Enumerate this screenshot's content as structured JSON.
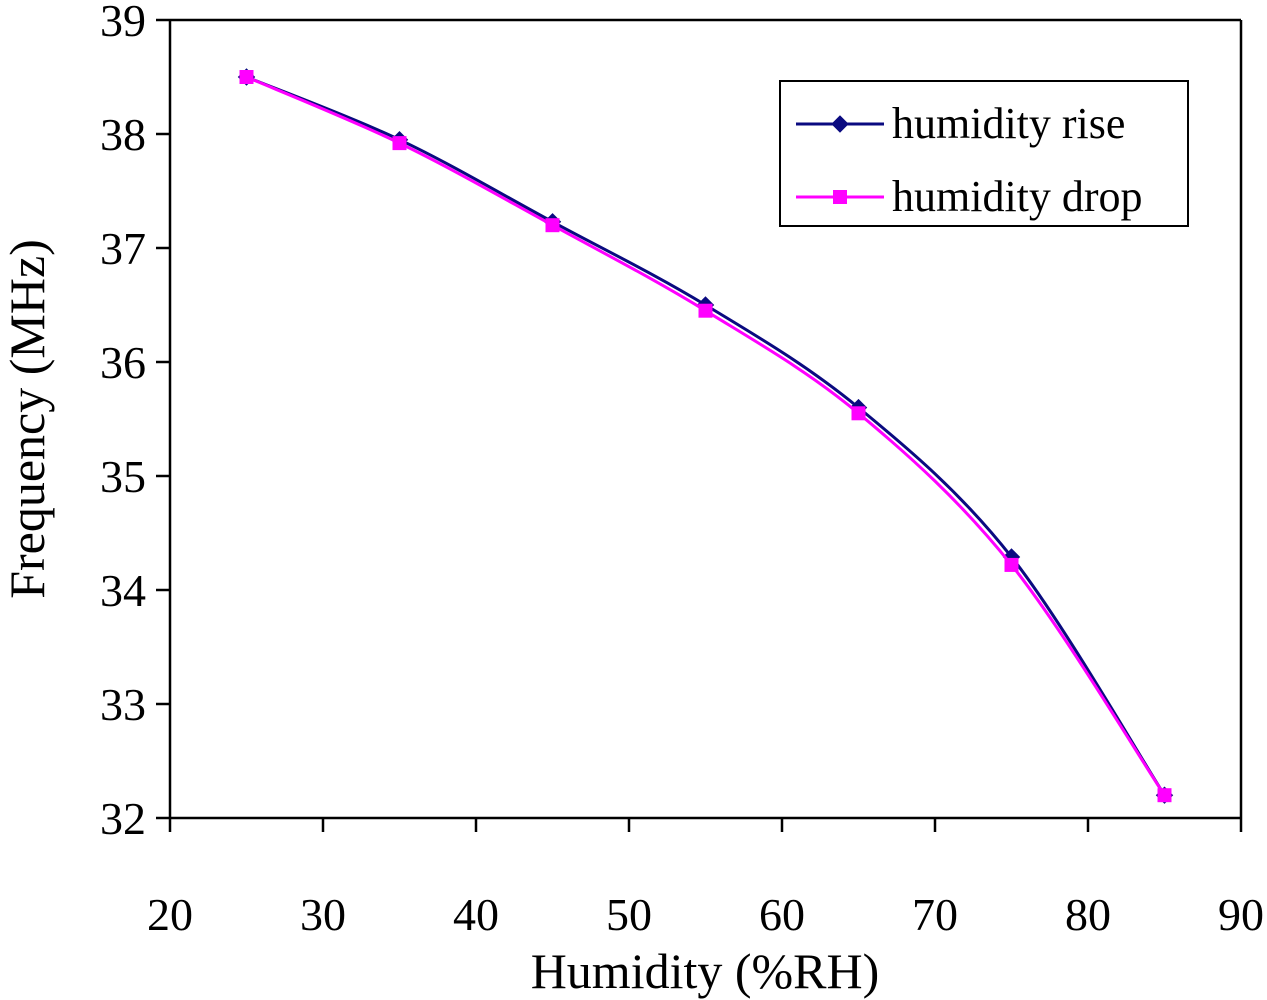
{
  "chart_data": {
    "type": "line",
    "title": "",
    "xlabel": "Humidity (%RH)",
    "ylabel": "Frequency (MHz)",
    "xlim": [
      20,
      90
    ],
    "ylim": [
      32,
      39
    ],
    "xticks": [
      "20",
      "30",
      "40",
      "50",
      "60",
      "70",
      "80",
      "90"
    ],
    "yticks": [
      "32",
      "33",
      "34",
      "35",
      "36",
      "37",
      "38",
      "39"
    ],
    "grid": false,
    "legend_position": "top-right",
    "x": [
      25,
      35,
      45,
      55,
      65,
      75,
      85
    ],
    "series": [
      {
        "name": "humidity rise",
        "color": "#0a0a80",
        "marker": "diamond",
        "values": [
          38.5,
          37.95,
          37.23,
          36.5,
          35.6,
          34.29,
          32.2
        ]
      },
      {
        "name": "humidity drop",
        "color": "#ff00ff",
        "marker": "square",
        "values": [
          38.5,
          37.92,
          37.2,
          36.45,
          35.55,
          34.22,
          32.2
        ]
      }
    ]
  }
}
